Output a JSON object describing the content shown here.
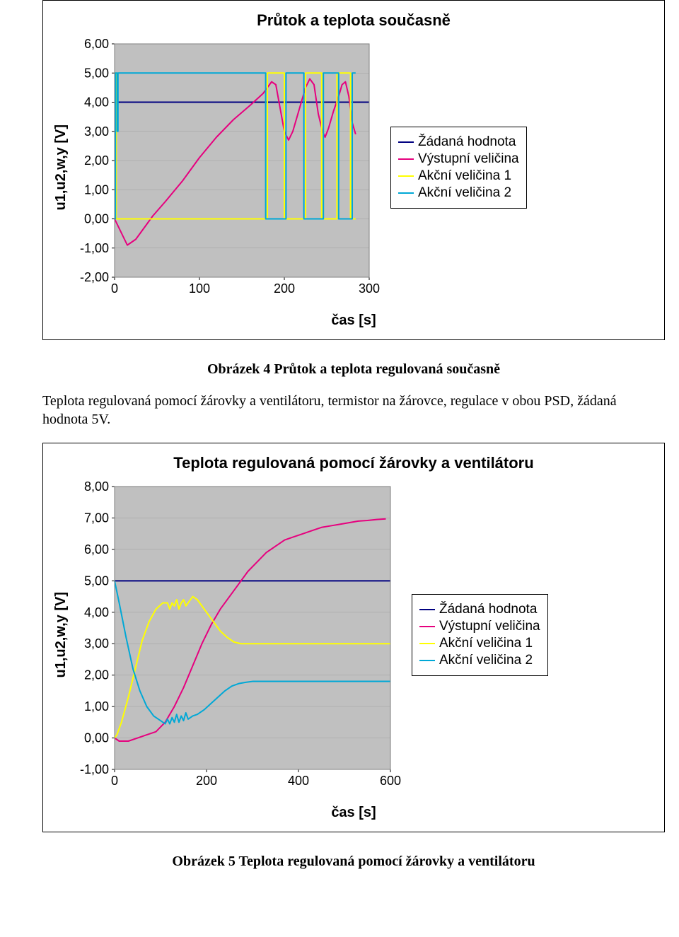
{
  "chart1": {
    "type": "line",
    "title": "Průtok a teplota současně",
    "title_fontsize": 22,
    "ylabel": "u1,u2,w,y [V]",
    "xlabel": "čas [s]",
    "label_fontsize": 20,
    "plot_bg": "#c0c0c0",
    "outer_bg": "#ffffff",
    "grid_color": "#808080",
    "border_color": "#808080",
    "tick_fontsize": 18,
    "xlim": [
      0,
      300
    ],
    "xticks": [
      0,
      100,
      200,
      300
    ],
    "ylim": [
      -2.0,
      6.0
    ],
    "yticks": [
      -2.0,
      -1.0,
      0.0,
      1.0,
      2.0,
      3.0,
      4.0,
      5.0,
      6.0
    ],
    "ytick_labels": [
      "-2,00",
      "-1,00",
      "0,00",
      "1,00",
      "2,00",
      "3,00",
      "4,00",
      "5,00",
      "6,00"
    ],
    "legend": {
      "items": [
        {
          "label": "Žádaná hodnota",
          "color": "#000080"
        },
        {
          "label": "Výstupní veličina",
          "color": "#e6007e"
        },
        {
          "label": "Akční veličina 1",
          "color": "#ffff00"
        },
        {
          "label": "Akční veličina 2",
          "color": "#00a8d6"
        }
      ]
    },
    "series": {
      "zadana": {
        "color": "#000080",
        "width": 2,
        "pts": [
          [
            0,
            4.0
          ],
          [
            300,
            4.0
          ]
        ]
      },
      "vystupni": {
        "color": "#e6007e",
        "width": 2,
        "pts": [
          [
            0,
            0.0
          ],
          [
            5,
            -0.3
          ],
          [
            15,
            -0.9
          ],
          [
            25,
            -0.7
          ],
          [
            35,
            -0.3
          ],
          [
            45,
            0.1
          ],
          [
            60,
            0.6
          ],
          [
            80,
            1.3
          ],
          [
            100,
            2.1
          ],
          [
            120,
            2.8
          ],
          [
            140,
            3.4
          ],
          [
            160,
            3.9
          ],
          [
            175,
            4.3
          ],
          [
            185,
            4.7
          ],
          [
            190,
            4.6
          ],
          [
            195,
            3.8
          ],
          [
            200,
            3.0
          ],
          [
            205,
            2.7
          ],
          [
            210,
            3.0
          ],
          [
            215,
            3.5
          ],
          [
            220,
            4.0
          ],
          [
            225,
            4.5
          ],
          [
            230,
            4.8
          ],
          [
            235,
            4.6
          ],
          [
            240,
            3.6
          ],
          [
            245,
            3.0
          ],
          [
            248,
            2.8
          ],
          [
            252,
            3.1
          ],
          [
            258,
            3.7
          ],
          [
            264,
            4.2
          ],
          [
            268,
            4.6
          ],
          [
            272,
            4.7
          ],
          [
            276,
            4.2
          ],
          [
            280,
            3.3
          ],
          [
            284,
            2.9
          ]
        ]
      },
      "akcni1": {
        "color": "#ffff00",
        "width": 2,
        "pts": [
          [
            0,
            5.0
          ],
          [
            2,
            5.0
          ],
          [
            2,
            0.0
          ],
          [
            180,
            0.0
          ],
          [
            180,
            5.0
          ],
          [
            200,
            5.0
          ],
          [
            200,
            0.0
          ],
          [
            225,
            0.0
          ],
          [
            225,
            5.0
          ],
          [
            244,
            5.0
          ],
          [
            244,
            0.0
          ],
          [
            262,
            0.0
          ],
          [
            262,
            5.0
          ],
          [
            278,
            5.0
          ],
          [
            278,
            0.0
          ],
          [
            284,
            0.0
          ]
        ]
      },
      "akcni2": {
        "color": "#00a8d6",
        "width": 2,
        "pts": [
          [
            0,
            0.0
          ],
          [
            1,
            0.0
          ],
          [
            1,
            5.0
          ],
          [
            3,
            5.0
          ],
          [
            3,
            3.0
          ],
          [
            4,
            3.0
          ],
          [
            4,
            5.0
          ],
          [
            178,
            5.0
          ],
          [
            178,
            0.0
          ],
          [
            202,
            0.0
          ],
          [
            202,
            5.0
          ],
          [
            223,
            5.0
          ],
          [
            223,
            0.0
          ],
          [
            246,
            0.0
          ],
          [
            246,
            5.0
          ],
          [
            264,
            5.0
          ],
          [
            264,
            0.0
          ],
          [
            280,
            0.0
          ],
          [
            280,
            5.0
          ],
          [
            284,
            5.0
          ]
        ]
      }
    },
    "caption": "Obrázek 4 Průtok a teplota regulovaná současně"
  },
  "paragraph1": "Teplota regulovaná pomocí žárovky a ventilátoru, termistor na žárovce, regulace v obou PSD, žádaná hodnota 5V.",
  "chart2": {
    "type": "line",
    "title": "Teplota regulovaná pomocí žárovky a ventilátoru",
    "title_fontsize": 22,
    "ylabel": "u1,u2,w,y [V]",
    "xlabel": "čas [s]",
    "label_fontsize": 20,
    "plot_bg": "#c0c0c0",
    "outer_bg": "#ffffff",
    "grid_color": "#808080",
    "border_color": "#808080",
    "tick_fontsize": 18,
    "xlim": [
      0,
      600
    ],
    "xticks": [
      0,
      200,
      400,
      600
    ],
    "ylim": [
      -1.0,
      8.0
    ],
    "yticks": [
      -1.0,
      0.0,
      1.0,
      2.0,
      3.0,
      4.0,
      5.0,
      6.0,
      7.0,
      8.0
    ],
    "ytick_labels": [
      "-1,00",
      "0,00",
      "1,00",
      "2,00",
      "3,00",
      "4,00",
      "5,00",
      "6,00",
      "7,00",
      "8,00"
    ],
    "legend": {
      "items": [
        {
          "label": "Žádaná hodnota",
          "color": "#000080"
        },
        {
          "label": "Výstupní veličina",
          "color": "#e6007e"
        },
        {
          "label": "Akční veličina 1",
          "color": "#ffff00"
        },
        {
          "label": "Akční veličina 2",
          "color": "#00a8d6"
        }
      ]
    },
    "series": {
      "zadana": {
        "color": "#000080",
        "width": 2,
        "pts": [
          [
            0,
            5.0
          ],
          [
            600,
            5.0
          ]
        ]
      },
      "vystupni": {
        "color": "#e6007e",
        "width": 2,
        "pts": [
          [
            0,
            0.0
          ],
          [
            10,
            -0.1
          ],
          [
            30,
            -0.1
          ],
          [
            50,
            0.0
          ],
          [
            70,
            0.1
          ],
          [
            90,
            0.2
          ],
          [
            110,
            0.5
          ],
          [
            130,
            1.0
          ],
          [
            150,
            1.6
          ],
          [
            170,
            2.3
          ],
          [
            190,
            3.0
          ],
          [
            210,
            3.6
          ],
          [
            230,
            4.1
          ],
          [
            250,
            4.5
          ],
          [
            270,
            4.9
          ],
          [
            290,
            5.3
          ],
          [
            310,
            5.6
          ],
          [
            330,
            5.9
          ],
          [
            350,
            6.1
          ],
          [
            370,
            6.3
          ],
          [
            390,
            6.4
          ],
          [
            410,
            6.5
          ],
          [
            430,
            6.6
          ],
          [
            450,
            6.7
          ],
          [
            470,
            6.75
          ],
          [
            490,
            6.8
          ],
          [
            510,
            6.85
          ],
          [
            530,
            6.9
          ],
          [
            550,
            6.92
          ],
          [
            570,
            6.95
          ],
          [
            590,
            6.97
          ]
        ]
      },
      "akcni1": {
        "color": "#ffff00",
        "width": 2,
        "pts": [
          [
            0,
            0.0
          ],
          [
            5,
            0.1
          ],
          [
            15,
            0.5
          ],
          [
            30,
            1.3
          ],
          [
            45,
            2.2
          ],
          [
            60,
            3.1
          ],
          [
            75,
            3.7
          ],
          [
            90,
            4.1
          ],
          [
            105,
            4.3
          ],
          [
            115,
            4.3
          ],
          [
            120,
            4.1
          ],
          [
            125,
            4.3
          ],
          [
            130,
            4.2
          ],
          [
            135,
            4.4
          ],
          [
            140,
            4.1
          ],
          [
            145,
            4.3
          ],
          [
            150,
            4.4
          ],
          [
            155,
            4.2
          ],
          [
            160,
            4.3
          ],
          [
            170,
            4.5
          ],
          [
            180,
            4.4
          ],
          [
            190,
            4.2
          ],
          [
            200,
            4.0
          ],
          [
            215,
            3.7
          ],
          [
            230,
            3.4
          ],
          [
            245,
            3.2
          ],
          [
            260,
            3.05
          ],
          [
            275,
            3.0
          ],
          [
            600,
            3.0
          ]
        ]
      },
      "akcni2": {
        "color": "#00a8d6",
        "width": 2,
        "pts": [
          [
            0,
            5.0
          ],
          [
            10,
            4.3
          ],
          [
            25,
            3.2
          ],
          [
            40,
            2.2
          ],
          [
            55,
            1.5
          ],
          [
            70,
            1.0
          ],
          [
            85,
            0.7
          ],
          [
            100,
            0.55
          ],
          [
            110,
            0.45
          ],
          [
            115,
            0.6
          ],
          [
            120,
            0.45
          ],
          [
            125,
            0.65
          ],
          [
            130,
            0.5
          ],
          [
            135,
            0.75
          ],
          [
            140,
            0.5
          ],
          [
            145,
            0.7
          ],
          [
            150,
            0.55
          ],
          [
            155,
            0.8
          ],
          [
            160,
            0.6
          ],
          [
            170,
            0.7
          ],
          [
            180,
            0.75
          ],
          [
            195,
            0.9
          ],
          [
            210,
            1.1
          ],
          [
            225,
            1.3
          ],
          [
            240,
            1.5
          ],
          [
            255,
            1.65
          ],
          [
            270,
            1.73
          ],
          [
            285,
            1.77
          ],
          [
            300,
            1.8
          ],
          [
            600,
            1.8
          ]
        ]
      }
    },
    "caption": "Obrázek 5 Teplota regulovaná pomocí žárovky a ventilátoru"
  }
}
